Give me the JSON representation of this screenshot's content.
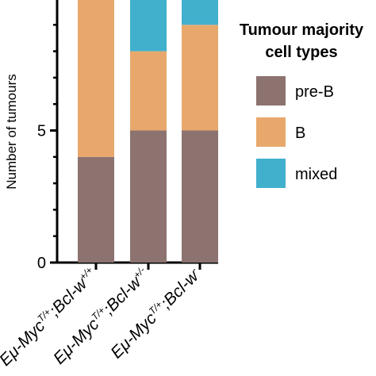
{
  "chart_data": {
    "type": "bar",
    "stacked": true,
    "categories": [
      {
        "parts": [
          [
            "Eμ-Myc",
            ""
          ],
          [
            "T/+",
            "sup"
          ],
          [
            ";Bcl-w",
            ""
          ],
          [
            "+/+",
            "sup"
          ]
        ]
      },
      {
        "parts": [
          [
            "Eμ-Myc",
            ""
          ],
          [
            "T/+",
            "sup"
          ],
          [
            ";Bcl-w",
            ""
          ],
          [
            "+/-",
            "sup"
          ]
        ]
      },
      {
        "parts": [
          [
            "Eμ-Myc",
            ""
          ],
          [
            "T/+",
            "sup"
          ],
          [
            ";Bcl-w",
            ""
          ],
          [
            "-",
            "sup"
          ]
        ]
      }
    ],
    "series": [
      {
        "name": "pre-B",
        "color": "#8c7370",
        "values": [
          4,
          5,
          5
        ]
      },
      {
        "name": "B",
        "color": "#e8a86c",
        "values": [
          6,
          3,
          4
        ]
      },
      {
        "name": "mixed",
        "color": "#41b0cc",
        "values": [
          0,
          2,
          1
        ]
      }
    ],
    "ylabel": "Number of tumours",
    "ylim": [
      0,
      10
    ],
    "yticks": [
      0,
      5
    ],
    "legend": {
      "title_lines": [
        "Tumour majority",
        "cell types"
      ],
      "placement": "right"
    }
  }
}
